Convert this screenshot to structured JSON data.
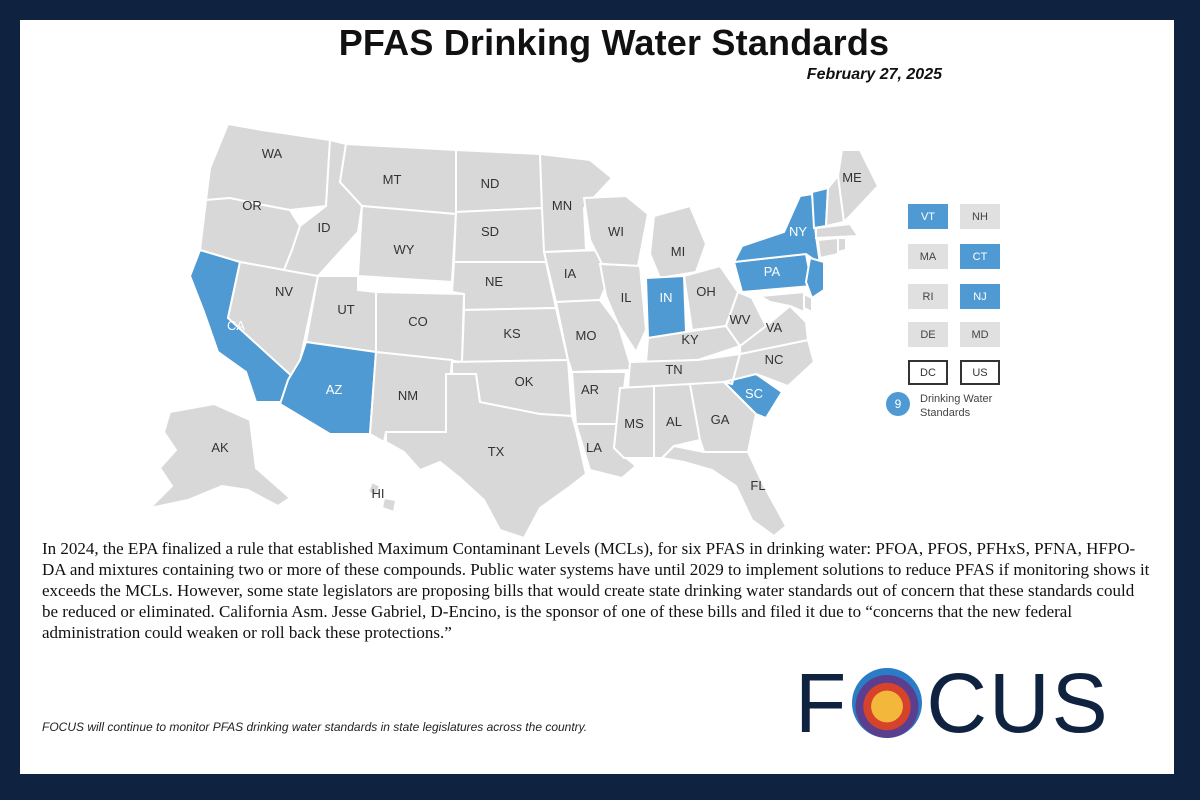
{
  "title": "PFAS Drinking Water Standards",
  "date": "February 27, 2025",
  "map": {
    "highlight_color": "#4f9ad3",
    "default_color": "#d8d8d8",
    "states": {
      "WA": false,
      "OR": false,
      "CA": true,
      "NV": false,
      "ID": false,
      "MT": false,
      "WY": false,
      "UT": false,
      "AZ": true,
      "NM": false,
      "CO": false,
      "ND": false,
      "SD": false,
      "NE": false,
      "KS": false,
      "OK": false,
      "TX": false,
      "MN": false,
      "IA": false,
      "MO": false,
      "AR": false,
      "LA": false,
      "WI": false,
      "IL": false,
      "MI": false,
      "IN": true,
      "OH": false,
      "KY": false,
      "TN": false,
      "MS": false,
      "AL": false,
      "GA": false,
      "FL": false,
      "SC": true,
      "NC": false,
      "VA": false,
      "WV": false,
      "PA": true,
      "NY": true,
      "VT": true,
      "ME": false,
      "NJ": true,
      "AK": false,
      "HI": false
    }
  },
  "legend": {
    "boxes": [
      {
        "label": "VT",
        "highlighted": true
      },
      {
        "label": "NH",
        "highlighted": false
      },
      {
        "label": "MA",
        "highlighted": false
      },
      {
        "label": "CT",
        "highlighted": true
      },
      {
        "label": "RI",
        "highlighted": false
      },
      {
        "label": "NJ",
        "highlighted": true
      },
      {
        "label": "DE",
        "highlighted": false
      },
      {
        "label": "MD",
        "highlighted": false
      },
      {
        "label": "DC",
        "highlighted": false
      },
      {
        "label": "US",
        "highlighted": false
      }
    ],
    "count": "9",
    "count_label": "Drinking Water Standards"
  },
  "body_text": "In 2024, the EPA finalized a rule that established Maximum Contaminant Levels (MCLs), for six PFAS in drinking water: PFOA, PFOS, PFHxS, PFNA, HFPO-DA and mixtures containing two or more of these compounds. Public water systems have until 2029 to implement solutions to reduce PFAS if monitoring shows it exceeds the MCLs. However, some state legislators are proposing bills that would create state drinking water standards out of concern that these standards could be reduced or eliminated. California Asm. Jesse Gabriel, D-Encino, is the sponsor of one of these bills and filed it due to “concerns that the new federal administration could weaken or roll back these protections.”",
  "footer_note": "FOCUS will continue to monitor PFAS drinking water standards in state legislatures across the country.",
  "logo": {
    "left": "F",
    "right": "CUS"
  }
}
